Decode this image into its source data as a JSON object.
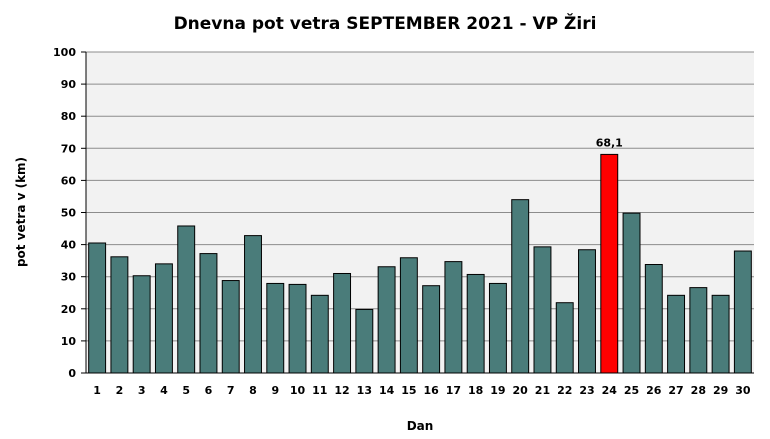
{
  "chart_data": {
    "type": "bar",
    "title": "Dnevna pot vetra SEPTEMBER 2021 - VP Žiri",
    "xlabel": "Dan",
    "ylabel": "pot vetra  v (km)",
    "ylim": [
      0,
      100
    ],
    "yticks": [
      "0",
      "10",
      "20",
      "30",
      "40",
      "50",
      "60",
      "70",
      "80",
      "90",
      "100"
    ],
    "grid": true,
    "categories": [
      "1",
      "2",
      "3",
      "4",
      "5",
      "6",
      "7",
      "8",
      "9",
      "10",
      "11",
      "12",
      "13",
      "14",
      "15",
      "16",
      "17",
      "18",
      "19",
      "20",
      "21",
      "22",
      "23",
      "24",
      "25",
      "26",
      "27",
      "28",
      "29",
      "30"
    ],
    "values": [
      40.5,
      36.2,
      30.3,
      34.0,
      45.8,
      37.2,
      28.8,
      42.8,
      27.9,
      27.6,
      24.2,
      31.0,
      19.8,
      33.1,
      35.9,
      27.2,
      34.7,
      30.7,
      27.9,
      54.0,
      39.3,
      21.9,
      38.4,
      68.1,
      49.8,
      33.8,
      24.2,
      26.6,
      24.2,
      38.0
    ],
    "colors": {
      "bar": "#4a7c7a",
      "highlight": "#ff0000",
      "plot_bg": "#f2f2f2",
      "grid": "#8c8c8c"
    },
    "highlight_index": 23,
    "annotations": [
      {
        "category": "24",
        "text": "68,1"
      }
    ]
  }
}
